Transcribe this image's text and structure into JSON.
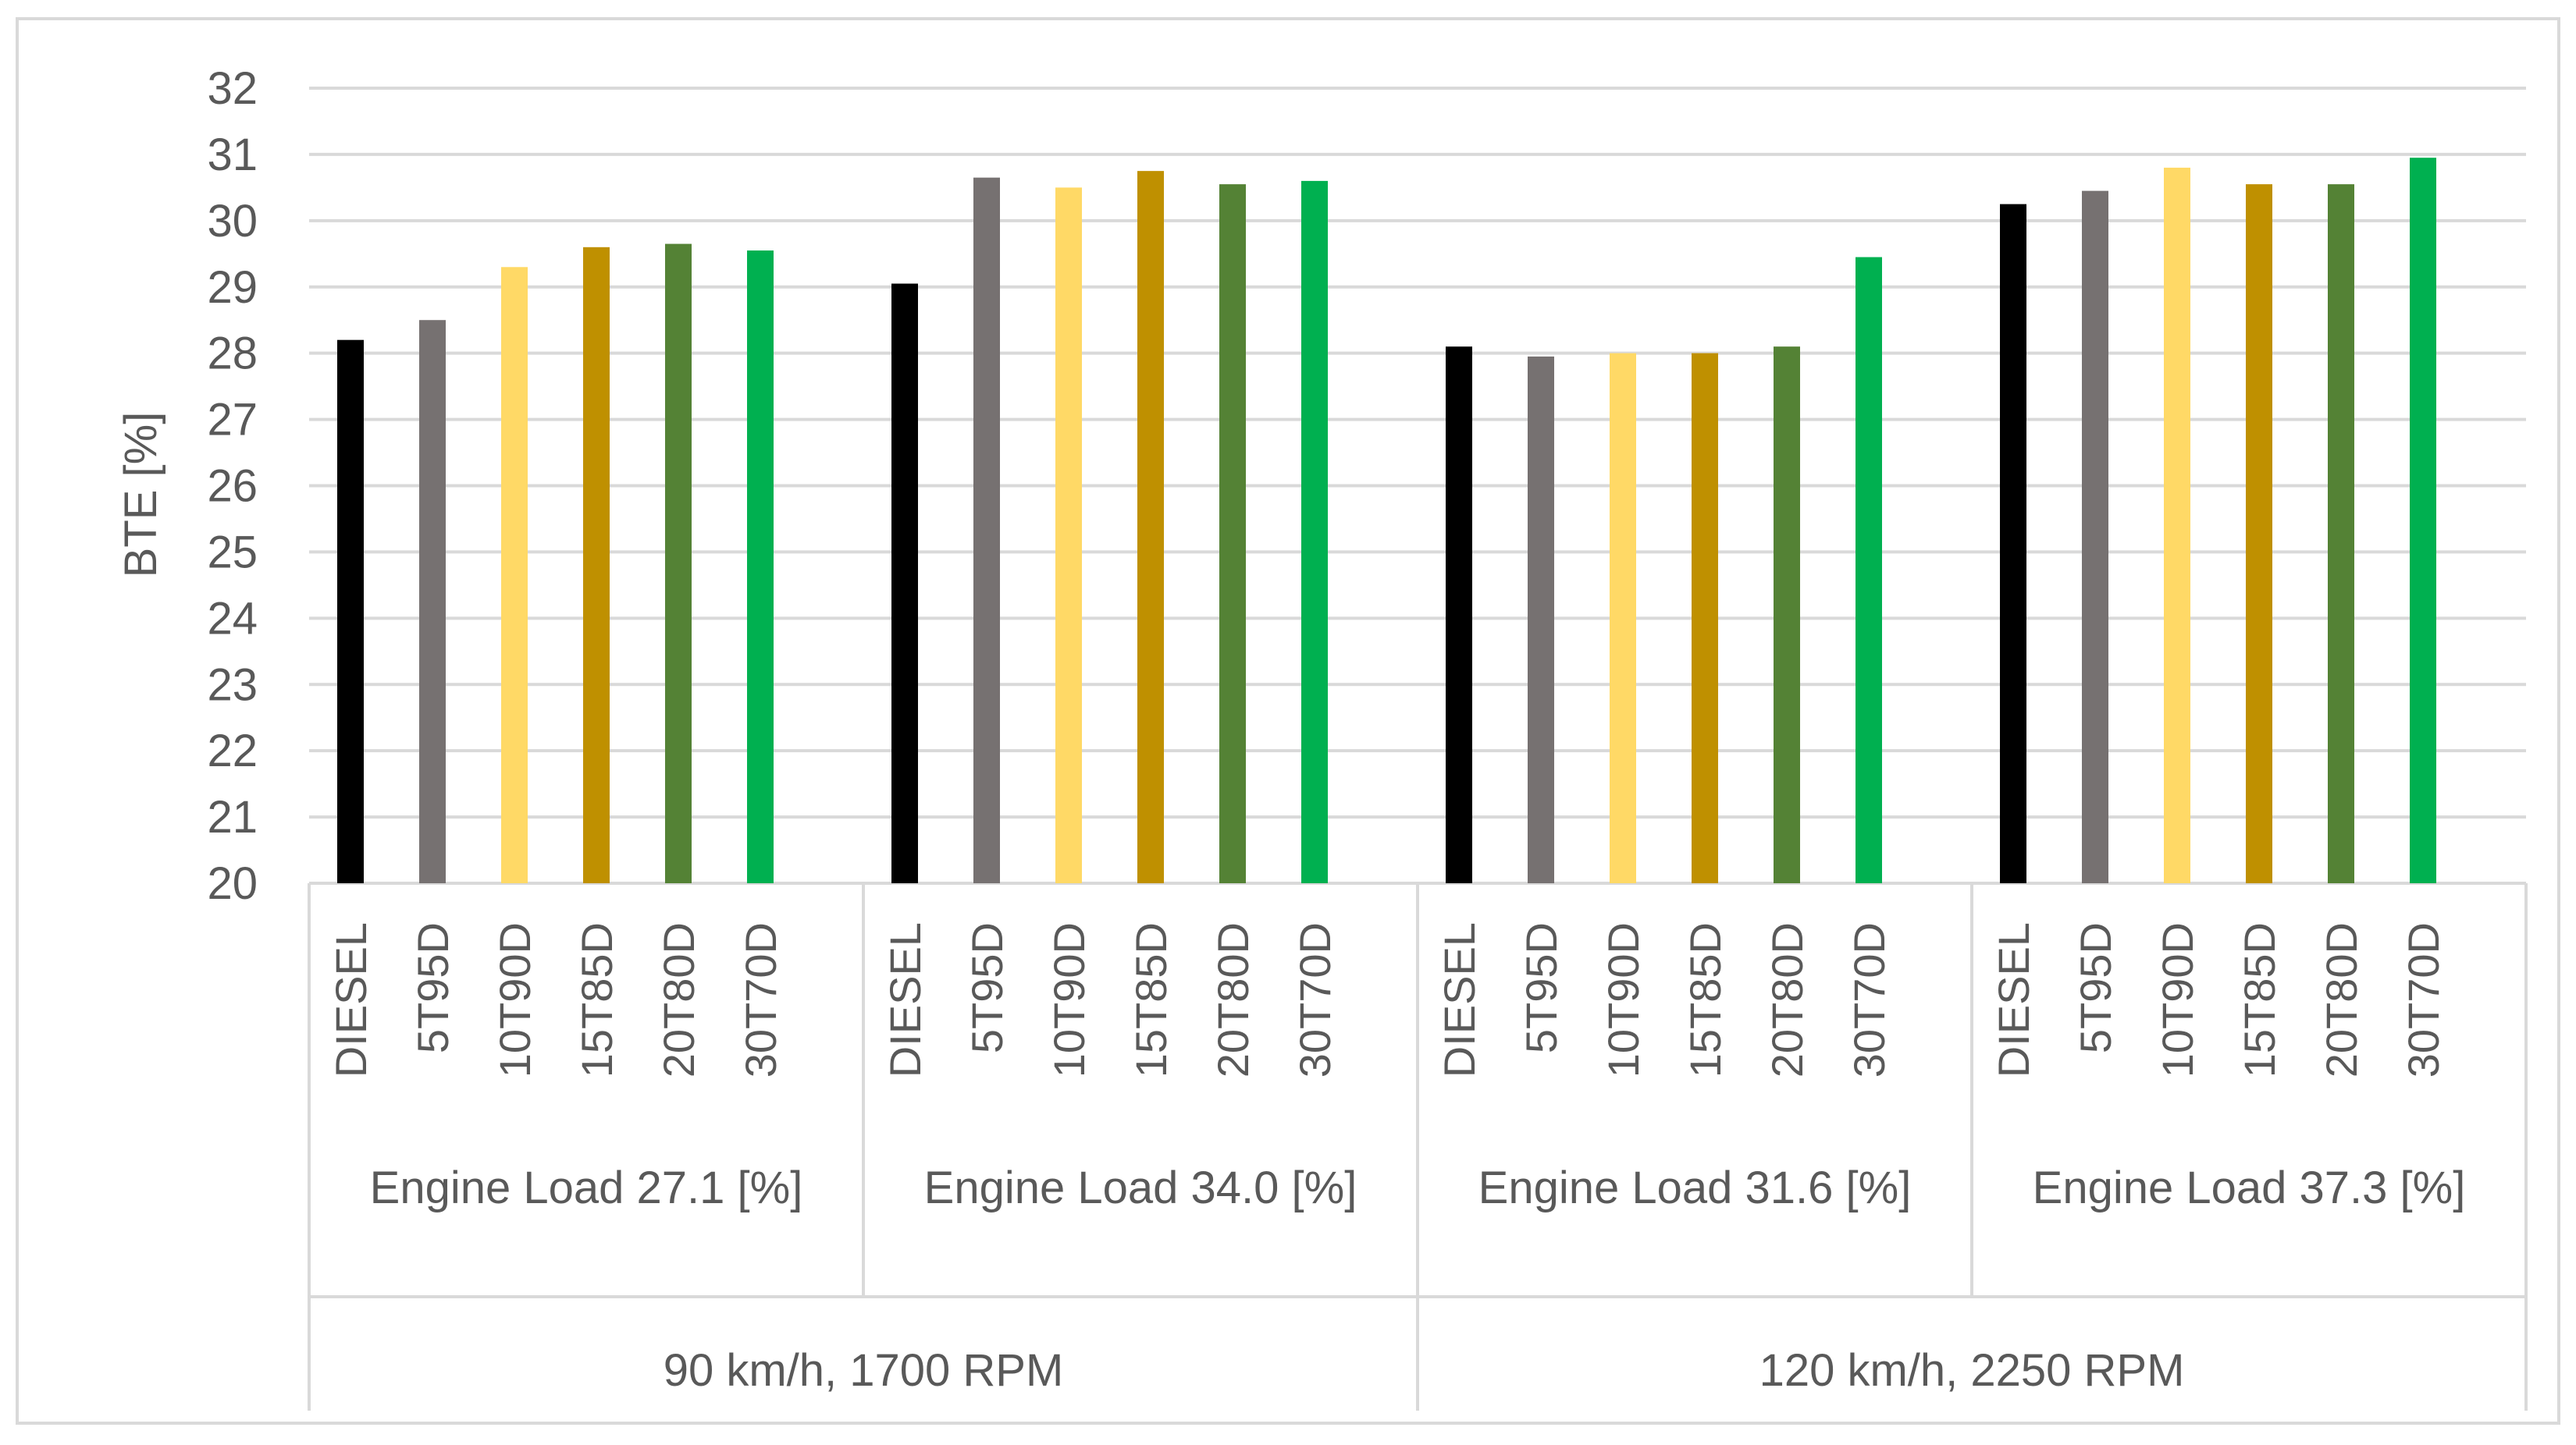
{
  "chart_data": {
    "type": "bar",
    "title": "",
    "ylabel": "BTE [%]",
    "xlabel": "",
    "ylim": [
      20,
      32
    ],
    "ytick_step": 1,
    "grid": true,
    "legend": "none",
    "fuel_labels": [
      "DIESEL",
      "5T95D",
      "10T90D",
      "15T85D",
      "20T80D",
      "30T70D"
    ],
    "groups": [
      {
        "load_label": "Engine Load 27.1 [%]",
        "values": [
          28.2,
          28.5,
          29.3,
          29.6,
          29.65,
          29.55
        ]
      },
      {
        "load_label": "Engine Load 34.0 [%]",
        "values": [
          29.05,
          30.65,
          30.5,
          30.75,
          30.55,
          30.6
        ]
      },
      {
        "load_label": "Engine Load 31.6 [%]",
        "values": [
          28.1,
          27.95,
          28.0,
          28.0,
          28.1,
          29.45
        ]
      },
      {
        "load_label": "Engine Load 37.3 [%]",
        "values": [
          30.25,
          30.45,
          30.8,
          30.55,
          30.55,
          30.95
        ]
      }
    ],
    "speed_labels": [
      "90 km/h, 1700 RPM",
      "120 km/h, 2250 RPM"
    ],
    "bar_colors": [
      "#000000",
      "#767171",
      "#ffd966",
      "#bf9000",
      "#548235",
      "#00b050"
    ]
  }
}
